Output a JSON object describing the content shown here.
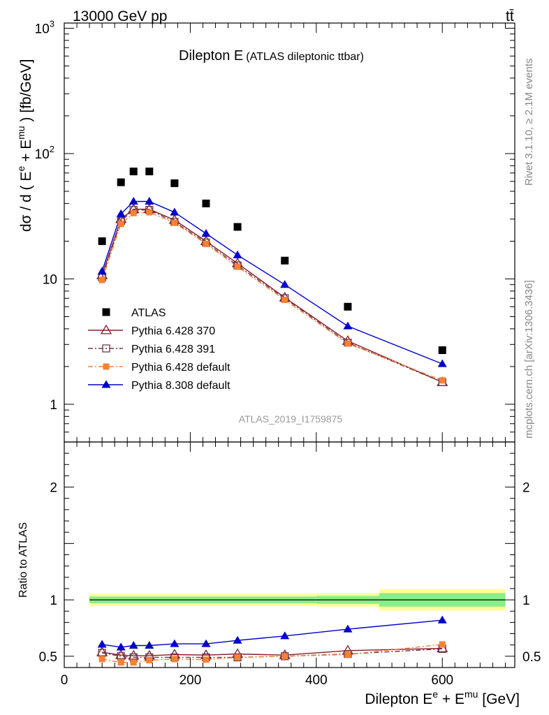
{
  "header": {
    "left": "13000 GeV pp",
    "right": "tt̄"
  },
  "side": {
    "rivet": "Rivet 3.1.10, ≥ 2.1M events",
    "mcplots": "mcplots.cern.ch [arXiv:1306.3436]"
  },
  "colors": {
    "data": "#000000",
    "p370": "#8b1a2b",
    "p391": "#6b3a4a",
    "p6def": "#f58232",
    "p8def": "#0000cc",
    "band_outer": "#ffff99",
    "band_inner": "#88ee88"
  },
  "chart_data": {
    "type": "scatter",
    "title": "Dilepton E",
    "subtitle": "(ATLAS dileptonic ttbar)",
    "analysis": "ATLAS_2019_I1759875",
    "xlabel": {
      "main": "Dilepton E",
      "sup1": "e",
      "plus": " + E",
      "sup2": "mu",
      "unit": " [GeV]"
    },
    "ylabel": {
      "pre": "dσ / d ( E",
      "sup1": "e",
      "plus": " + E",
      "sup2": "mu",
      "post": " ) [fb/GeV]"
    },
    "ratio_ylabel": "Ratio to ATLAS",
    "xlim": [
      0,
      715
    ],
    "ylim": [
      0.5,
      1100
    ],
    "yscale": "log",
    "ratio_ylim": [
      0.4,
      2.4
    ],
    "x_ticks": [
      "0",
      "200",
      "400",
      "600"
    ],
    "y_ticks": [
      "1",
      "10",
      "10",
      "10"
    ],
    "y_tick_exps": [
      "",
      "",
      "2",
      "3"
    ],
    "ratio_ticks": [
      "0.5",
      "1",
      "2"
    ],
    "legend_position": "center-left",
    "x": [
      60,
      90,
      110,
      135,
      175,
      225,
      275,
      350,
      450,
      600
    ],
    "bin_edges": [
      40,
      400,
      500,
      700
    ],
    "ratio_band_outer": [
      0.055,
      0.06,
      0.095
    ],
    "ratio_band_inner": [
      0.03,
      0.035,
      0.06
    ],
    "data": {
      "name": "ATLAS",
      "values": [
        20,
        59,
        72,
        72,
        58,
        40,
        26,
        14,
        6,
        2.7
      ]
    },
    "series": [
      {
        "name": "Pythia 6.428 370",
        "marker": "triangle-open",
        "line": "solid",
        "color_key": "p370",
        "values": [
          10.7,
          30,
          36,
          36,
          29.5,
          20,
          13.3,
          7.1,
          3.2,
          1.5
        ],
        "ratio": [
          0.535,
          0.51,
          0.505,
          0.505,
          0.515,
          0.51,
          0.52,
          0.51,
          0.55,
          0.57
        ]
      },
      {
        "name": "Pythia 6.428 391",
        "marker": "square-open",
        "line": "dashdot",
        "color_key": "p391",
        "values": [
          10.3,
          29,
          35.5,
          35.5,
          28.5,
          19.5,
          12.8,
          7.0,
          3.1,
          1.5
        ],
        "ratio": [
          0.53,
          0.5,
          0.49,
          0.49,
          0.49,
          0.49,
          0.49,
          0.5,
          0.52,
          0.565
        ]
      },
      {
        "name": "Pythia 6.428 default",
        "marker": "square-filled",
        "line": "dashdot",
        "color_key": "p6def",
        "values": [
          9.8,
          27.5,
          33.5,
          34,
          28,
          19,
          12.5,
          6.8,
          3.05,
          1.55
        ],
        "ratio": [
          0.475,
          0.445,
          0.445,
          0.465,
          0.475,
          0.47,
          0.49,
          0.5,
          0.515,
          0.605
        ]
      },
      {
        "name": "Pythia 8.308 default",
        "marker": "triangle-filled",
        "line": "solid",
        "color_key": "p8def",
        "values": [
          11.5,
          33,
          41.5,
          41.5,
          34,
          23,
          15.5,
          9,
          4.2,
          2.1
        ],
        "ratio": [
          0.605,
          0.58,
          0.595,
          0.595,
          0.61,
          0.61,
          0.64,
          0.68,
          0.74,
          0.82
        ]
      }
    ]
  }
}
